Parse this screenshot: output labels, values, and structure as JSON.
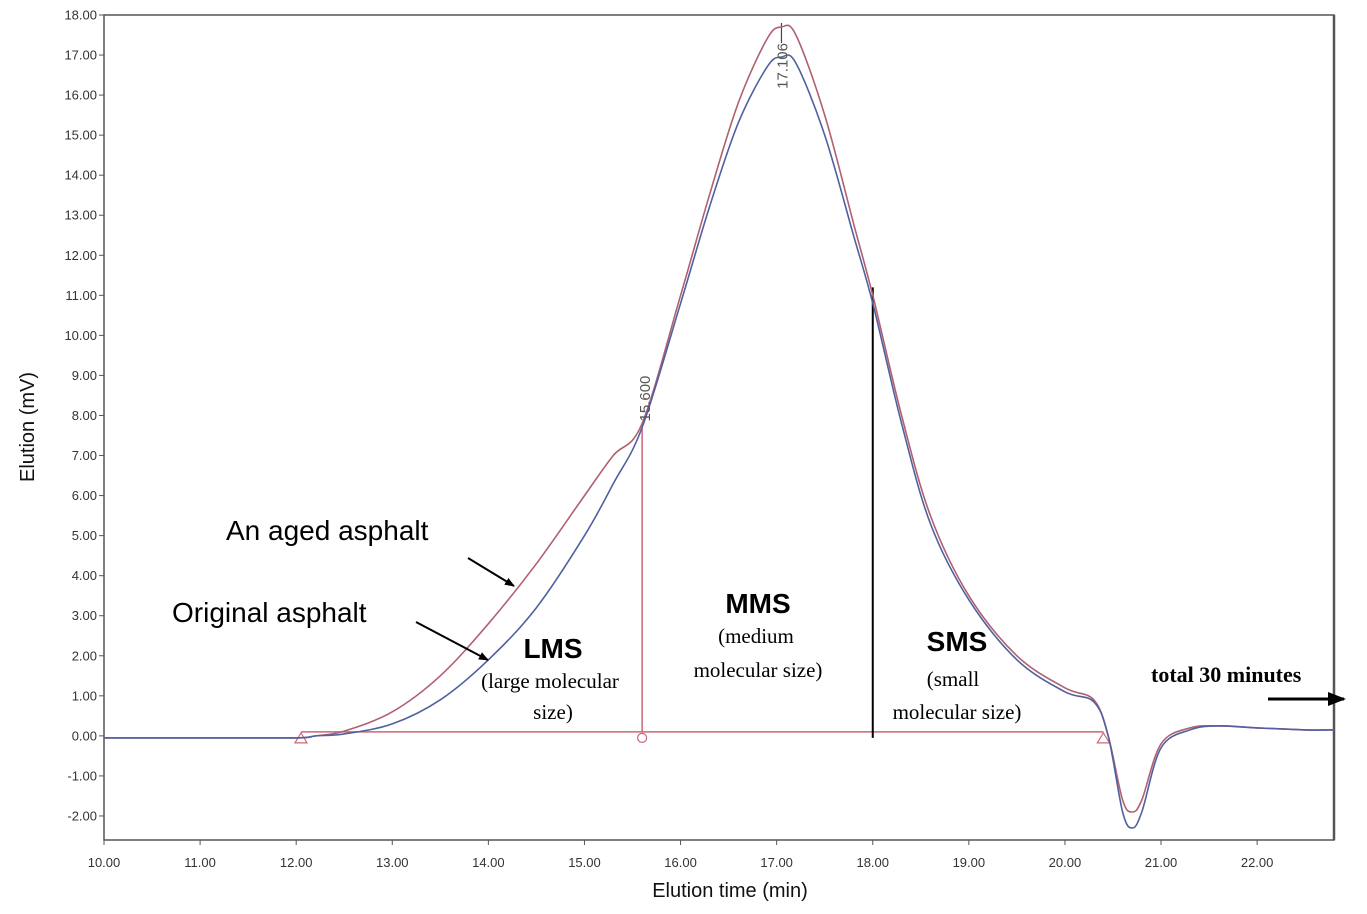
{
  "chart_data": {
    "type": "line",
    "xlabel": "Elution time (min)",
    "ylabel": "Elution (mV)",
    "xlim": [
      10.0,
      22.8
    ],
    "ylim": [
      -2.6,
      18.0
    ],
    "x_ticks": [
      "10.00",
      "11.00",
      "12.00",
      "13.00",
      "14.00",
      "15.00",
      "16.00",
      "17.00",
      "18.00",
      "19.00",
      "20.00",
      "21.00",
      "22.00"
    ],
    "y_ticks": [
      "18.00",
      "17.00",
      "16.00",
      "15.00",
      "14.00",
      "13.00",
      "12.00",
      "11.00",
      "10.00",
      "9.00",
      "8.00",
      "7.00",
      "6.00",
      "5.00",
      "4.00",
      "3.00",
      "2.00",
      "1.00",
      "0.00",
      "-1.00",
      "-2.00"
    ],
    "grid": false,
    "colors": {
      "aged": "#b06070",
      "original": "#5060a0",
      "baseline": "#cc6677",
      "divider": "#000000"
    },
    "series": [
      {
        "name": "An aged asphalt",
        "x": [
          10.0,
          11.0,
          12.0,
          12.2,
          12.5,
          13.0,
          13.5,
          14.0,
          14.5,
          15.0,
          15.3,
          15.6,
          16.0,
          16.3,
          16.6,
          16.9,
          17.05,
          17.2,
          17.5,
          17.8,
          18.0,
          18.3,
          18.6,
          19.0,
          19.5,
          20.0,
          20.3,
          20.45,
          20.6,
          20.7,
          20.8,
          21.0,
          21.3,
          21.6,
          22.0,
          22.5,
          22.8
        ],
        "y": [
          -0.05,
          -0.05,
          -0.05,
          0.0,
          0.12,
          0.6,
          1.5,
          2.8,
          4.3,
          6.0,
          7.0,
          7.8,
          11.0,
          13.5,
          15.8,
          17.4,
          17.7,
          17.5,
          15.5,
          12.8,
          11.0,
          8.0,
          5.5,
          3.5,
          2.0,
          1.2,
          0.9,
          0.0,
          -1.6,
          -1.9,
          -1.6,
          -0.2,
          0.2,
          0.25,
          0.2,
          0.15,
          0.15
        ]
      },
      {
        "name": "Original asphalt",
        "x": [
          10.0,
          11.0,
          12.0,
          12.2,
          12.5,
          13.0,
          13.5,
          14.0,
          14.5,
          15.0,
          15.3,
          15.6,
          16.0,
          16.3,
          16.6,
          16.9,
          17.05,
          17.2,
          17.5,
          17.8,
          18.0,
          18.3,
          18.6,
          19.0,
          19.5,
          20.0,
          20.3,
          20.45,
          20.6,
          20.7,
          20.8,
          21.0,
          21.3,
          21.6,
          22.0,
          22.5,
          22.8
        ],
        "y": [
          -0.05,
          -0.05,
          -0.05,
          0.0,
          0.05,
          0.3,
          0.9,
          1.9,
          3.2,
          5.0,
          6.3,
          7.7,
          10.8,
          13.2,
          15.3,
          16.7,
          16.95,
          16.8,
          15.0,
          12.5,
          10.8,
          7.8,
          5.3,
          3.4,
          1.9,
          1.1,
          0.85,
          0.0,
          -1.9,
          -2.3,
          -1.9,
          -0.3,
          0.15,
          0.25,
          0.2,
          0.15,
          0.15
        ]
      }
    ],
    "baseline": {
      "x_start": 12.05,
      "x_end": 20.4,
      "y": 0.1
    },
    "dividers": [
      {
        "x": 15.6,
        "label": "15.600",
        "color": "#cc6677",
        "y_top": 7.7
      },
      {
        "x": 18.0,
        "color": "#000000",
        "y_top": 11.2
      }
    ],
    "peak": {
      "x": 17.05,
      "label": "17.106"
    },
    "annotations": {
      "aged_label": "An aged asphalt",
      "original_label": "Original asphalt",
      "lms_title": "LMS",
      "lms_desc_1": "(large molecular",
      "lms_desc_2": "size)",
      "mms_title": "MMS",
      "mms_desc_1": "(medium",
      "mms_desc_2": "molecular size)",
      "sms_title": "SMS",
      "sms_desc_1": "(small",
      "sms_desc_2": "molecular size)",
      "total_label": "total 30 minutes"
    }
  }
}
